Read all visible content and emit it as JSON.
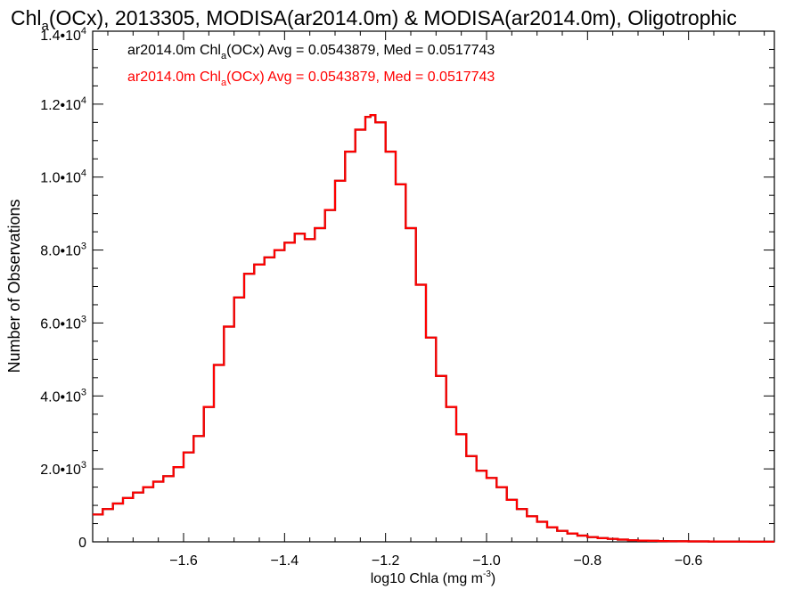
{
  "chart_data": {
    "type": "line",
    "title": {
      "pre": "Chl",
      "sub": "a",
      "post": "(OCx), 2013305, MODISA(ar2014.0m) & MODISA(ar2014.0m), Oligotrophic"
    },
    "xlabel": {
      "pre": "log10 Chla (mg m",
      "sup": "-3",
      "post": ")"
    },
    "ylabel": "Number of Observations",
    "xlim": [
      -1.78,
      -0.43
    ],
    "ylim": [
      0,
      14000
    ],
    "xticks": [
      {
        "value": -1.6,
        "label": "−1.6"
      },
      {
        "value": -1.4,
        "label": "−1.4"
      },
      {
        "value": -1.2,
        "label": "−1.2"
      },
      {
        "value": -1.0,
        "label": "−1.0"
      },
      {
        "value": -0.8,
        "label": "−0.8"
      },
      {
        "value": -0.6,
        "label": "−0.6"
      }
    ],
    "yticks": [
      {
        "value": 0,
        "label": "0",
        "exp": ""
      },
      {
        "value": 2000,
        "label": "2.0•10",
        "exp": "3"
      },
      {
        "value": 4000,
        "label": "4.0•10",
        "exp": "3"
      },
      {
        "value": 6000,
        "label": "6.0•10",
        "exp": "3"
      },
      {
        "value": 8000,
        "label": "8.0•10",
        "exp": "3"
      },
      {
        "value": 10000,
        "label": "1.0•10",
        "exp": "4"
      },
      {
        "value": 12000,
        "label": "1.2•10",
        "exp": "4"
      },
      {
        "value": 14000,
        "label": "1.4•10",
        "exp": "4"
      }
    ],
    "grid": false,
    "legend": [
      {
        "pre": "ar2014.0m Chl",
        "sub": "a",
        "post": "(OCx) Avg = 0.0543879, Med = 0.0517743",
        "color": "#000000"
      },
      {
        "pre": "ar2014.0m Chl",
        "sub": "a",
        "post": "(OCx) Avg = 0.0543879, Med = 0.0517743",
        "color": "#ff0000"
      }
    ],
    "series": [
      {
        "color": "#ff0000",
        "style": "step",
        "x": [
          -1.78,
          -1.76,
          -1.74,
          -1.72,
          -1.7,
          -1.68,
          -1.66,
          -1.64,
          -1.62,
          -1.6,
          -1.58,
          -1.56,
          -1.54,
          -1.52,
          -1.5,
          -1.48,
          -1.46,
          -1.44,
          -1.42,
          -1.4,
          -1.38,
          -1.36,
          -1.34,
          -1.32,
          -1.3,
          -1.28,
          -1.26,
          -1.24,
          -1.23,
          -1.22,
          -1.2,
          -1.18,
          -1.16,
          -1.14,
          -1.12,
          -1.1,
          -1.08,
          -1.06,
          -1.04,
          -1.02,
          -1.0,
          -0.98,
          -0.96,
          -0.94,
          -0.92,
          -0.9,
          -0.88,
          -0.86,
          -0.84,
          -0.82,
          -0.8,
          -0.78,
          -0.76,
          -0.74,
          -0.72,
          -0.7,
          -0.68,
          -0.66,
          -0.64,
          -0.62,
          -0.6,
          -0.58,
          -0.56,
          -0.54,
          -0.52,
          -0.5,
          -0.48,
          -0.46,
          -0.44
        ],
        "values": [
          750,
          900,
          1050,
          1200,
          1350,
          1500,
          1650,
          1800,
          2050,
          2450,
          2900,
          3700,
          4850,
          5900,
          6700,
          7350,
          7600,
          7800,
          8000,
          8200,
          8450,
          8300,
          8600,
          9100,
          9900,
          10700,
          11300,
          11650,
          11700,
          11500,
          10700,
          9800,
          8600,
          7050,
          5600,
          4550,
          3700,
          2950,
          2350,
          1950,
          1750,
          1500,
          1150,
          900,
          700,
          550,
          400,
          300,
          230,
          170,
          130,
          100,
          80,
          60,
          45,
          35,
          28,
          22,
          18,
          15,
          13,
          11,
          10,
          9,
          8,
          7,
          6,
          5,
          4
        ]
      },
      {
        "color": "#000000",
        "style": "step",
        "x": [
          -1.78,
          -1.76,
          -1.74,
          -1.72,
          -1.7,
          -1.68,
          -1.66,
          -1.64,
          -1.62,
          -1.6,
          -1.58,
          -1.56,
          -1.54,
          -1.52,
          -1.5,
          -1.48,
          -1.46,
          -1.44,
          -1.42,
          -1.4,
          -1.38,
          -1.36,
          -1.34,
          -1.32,
          -1.3,
          -1.28,
          -1.26,
          -1.24,
          -1.23,
          -1.22,
          -1.2,
          -1.18,
          -1.16,
          -1.14,
          -1.12,
          -1.1,
          -1.08,
          -1.06,
          -1.04,
          -1.02,
          -1.0,
          -0.98,
          -0.96,
          -0.94,
          -0.92,
          -0.9,
          -0.88,
          -0.86,
          -0.84,
          -0.82,
          -0.8,
          -0.78,
          -0.76,
          -0.74,
          -0.72,
          -0.7,
          -0.68,
          -0.66,
          -0.64,
          -0.62,
          -0.6,
          -0.58,
          -0.56,
          -0.54,
          -0.52,
          -0.5,
          -0.48,
          -0.46,
          -0.44
        ],
        "values": [
          750,
          900,
          1050,
          1200,
          1350,
          1500,
          1650,
          1800,
          2050,
          2450,
          2900,
          3700,
          4850,
          5900,
          6700,
          7350,
          7600,
          7800,
          8000,
          8200,
          8450,
          8300,
          8600,
          9100,
          9900,
          10700,
          11300,
          11650,
          11700,
          11500,
          10700,
          9800,
          8600,
          7050,
          5600,
          4550,
          3700,
          2950,
          2350,
          1950,
          1750,
          1500,
          1150,
          900,
          700,
          550,
          400,
          300,
          230,
          170,
          130,
          100,
          80,
          60,
          45,
          35,
          28,
          22,
          18,
          15,
          13,
          11,
          10,
          9,
          8,
          7,
          6,
          5,
          4
        ]
      }
    ]
  }
}
